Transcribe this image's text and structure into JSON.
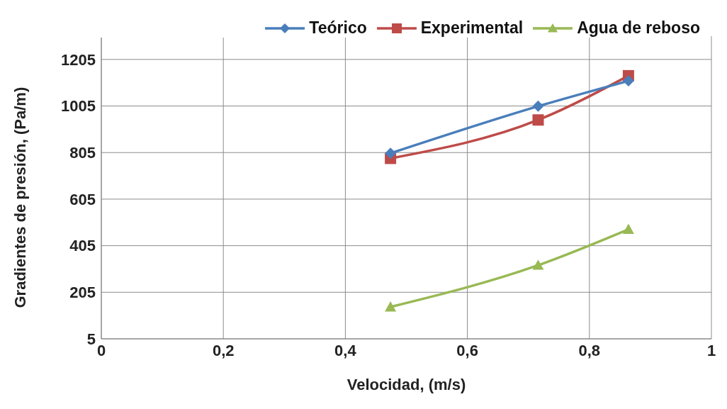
{
  "chart_data": {
    "type": "line",
    "xlabel": "Velocidad, (m/s)",
    "ylabel": "Gradientes de presión, (Pa/m)",
    "xlim": [
      0,
      1
    ],
    "xticks": [
      0,
      {
        "value": 0.2,
        "label": "0,2"
      },
      {
        "value": 0.4,
        "label": "0,4"
      },
      {
        "value": 0.6,
        "label": "0,6"
      },
      {
        "value": 0.8,
        "label": "0,8"
      },
      1
    ],
    "ylim": [
      5,
      1305
    ],
    "yticks": [
      5,
      205,
      405,
      605,
      805,
      1005,
      1205
    ],
    "grid": true,
    "legend": "top right",
    "line_style": "solid",
    "series": [
      {
        "name": "Teórico",
        "color": "#4a7ebb",
        "marker": "diamond",
        "x": [
          0.474,
          0.716,
          0.864
        ],
        "values": [
          802,
          1004,
          1113
        ]
      },
      {
        "name": "Experimental",
        "color": "#be4b48",
        "marker": "square",
        "x": [
          0.474,
          0.716,
          0.864
        ],
        "values": [
          780,
          945,
          1135
        ]
      },
      {
        "name": "Agua de reboso",
        "color": "#98b954",
        "marker": "triangle",
        "x": [
          0.474,
          0.716,
          0.864
        ],
        "values": [
          142,
          321,
          475
        ]
      }
    ]
  }
}
